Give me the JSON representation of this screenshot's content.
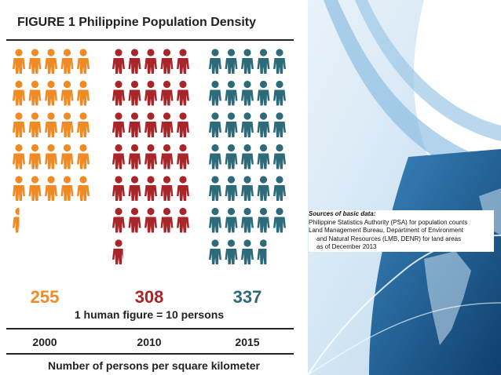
{
  "figure": {
    "title": "FIGURE 1  Philippine Population Density",
    "scale_note": "1 human figure = 10 persons",
    "x_label": "Number of persons per square kilometer"
  },
  "chart_data": {
    "type": "bar",
    "title": "FIGURE 1  Philippine Population Density",
    "xlabel": "Number of persons per square kilometer",
    "unit_per_icon": 10,
    "categories": [
      "2000",
      "2010",
      "2015"
    ],
    "values": [
      255,
      308,
      337
    ],
    "series_labels": [
      "255",
      "308",
      "337"
    ],
    "colors": [
      "#f08a24",
      "#a8262a",
      "#2d6b7a"
    ]
  },
  "sources": {
    "title": "Sources of basic data:",
    "line1": "Philippine Statistics Authority (PSA) for population counts",
    "line2": "Land Management Bureau, Department of Environment",
    "line3": "and Natural Resources (LMB, DENR) for land areas",
    "line4": "as of December 2013"
  },
  "background": {
    "accent_color": "#5b9fcc",
    "deep_color": "#1d5a8e"
  }
}
